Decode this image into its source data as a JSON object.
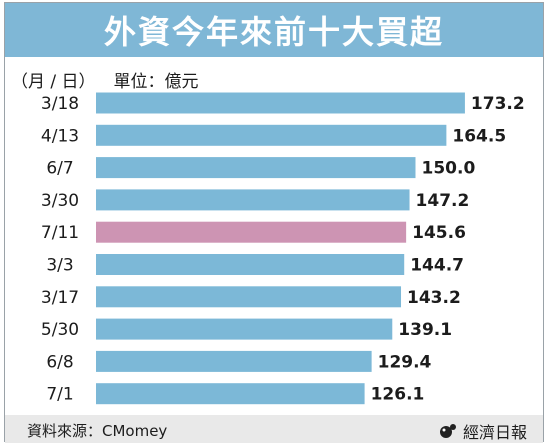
{
  "header": {
    "title": "外資今年來前十大買超"
  },
  "axis": {
    "category_label": "（月 / 日）",
    "unit_label": "單位：億元"
  },
  "footer": {
    "source": "資料來源：CMomey",
    "brand": "經濟日報"
  },
  "colors": {
    "title_bg": "#7fb7d6",
    "bar": "#7cb8d7",
    "highlight": "#cd94b3",
    "footer_bg": "#e9e9e9"
  },
  "chart_data": {
    "type": "bar",
    "orientation": "horizontal",
    "title": "外資今年來前十大買超",
    "xlabel": "單位：億元",
    "ylabel": "（月 / 日）",
    "categories": [
      "3/18",
      "4/13",
      "6/7",
      "3/30",
      "7/11",
      "3/3",
      "3/17",
      "5/30",
      "6/8",
      "7/1"
    ],
    "values": [
      173.2,
      164.5,
      150.0,
      147.2,
      145.6,
      144.7,
      143.2,
      139.1,
      129.4,
      126.1
    ],
    "value_labels": [
      "173.2",
      "164.5",
      "150.0",
      "147.2",
      "145.6",
      "144.7",
      "143.2",
      "139.1",
      "129.4",
      "126.1"
    ],
    "highlight_category": "7/11",
    "grid": false,
    "legend": "none"
  }
}
